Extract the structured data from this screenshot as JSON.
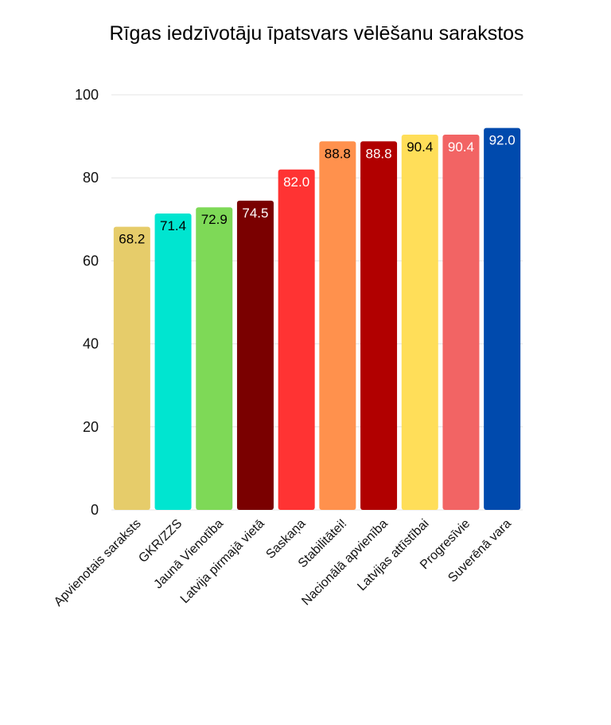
{
  "chart_data": {
    "type": "bar",
    "title": "Rīgas iedzīvotāju īpatsvars vēlēšanu sarakstos",
    "xlabel": "",
    "ylabel": "",
    "ylim": [
      0,
      100
    ],
    "yticks": [
      0,
      20,
      40,
      60,
      80,
      100
    ],
    "grid": true,
    "categories": [
      "Apvienotais saraksts",
      "GKR/ZZS",
      "Jaunā Vienotība",
      "Latvija pirmajā vietā",
      "Saskaņa",
      "Stabilitātei!",
      "Nacionālā apvienība",
      "Latvijas attīstībai",
      "Progresīvie",
      "Suverēnā vara"
    ],
    "values": [
      68.2,
      71.4,
      72.9,
      74.5,
      82.0,
      88.8,
      88.8,
      90.4,
      90.4,
      92.0
    ],
    "data_labels": [
      "68.2",
      "71.4",
      "72.9",
      "74.5",
      "82.0",
      "88.8",
      "88.8",
      "90.4",
      "90.4",
      "92.0"
    ],
    "colors": [
      "#e6cc6a",
      "#00e5d0",
      "#7ed957",
      "#7a0000",
      "#ff3333",
      "#ff914d",
      "#b10000",
      "#ffde59",
      "#f26464",
      "#004aad"
    ],
    "label_colors": [
      "#000000",
      "#000000",
      "#000000",
      "#ffffff",
      "#ffffff",
      "#000000",
      "#ffffff",
      "#000000",
      "#ffffff",
      "#ffffff"
    ]
  }
}
